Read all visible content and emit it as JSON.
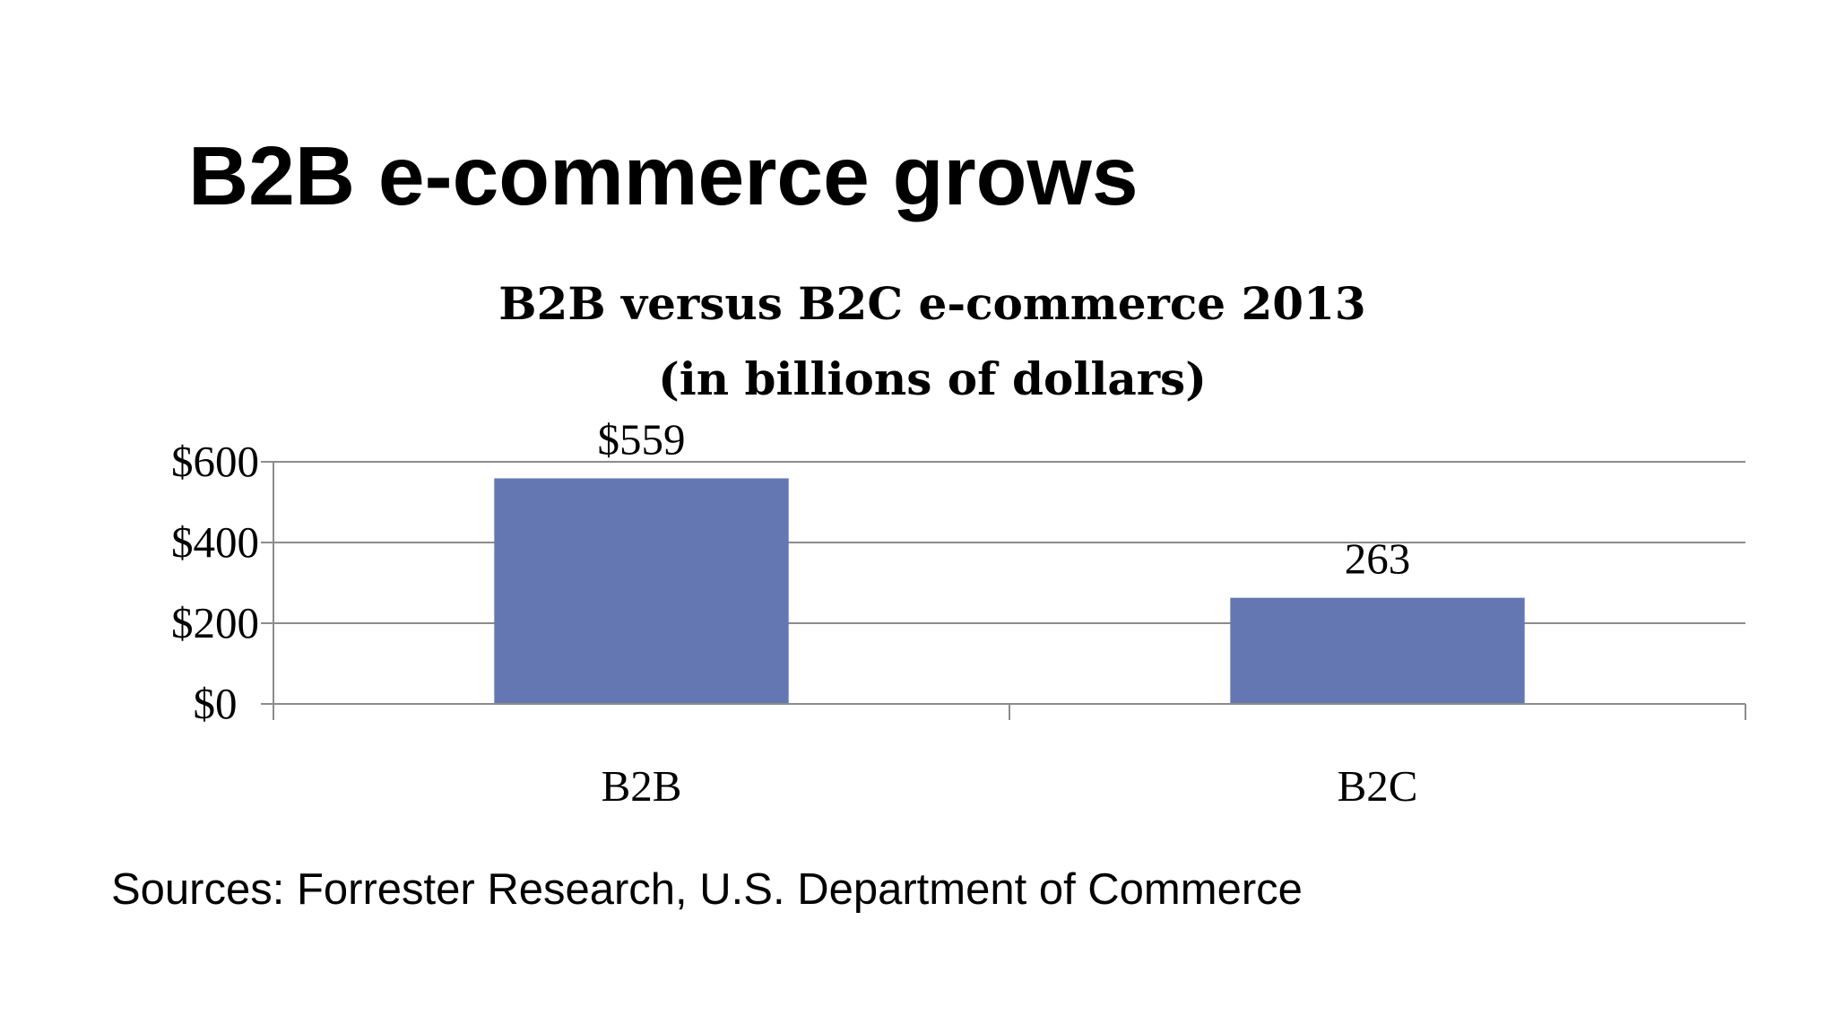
{
  "slide": {
    "title": "B2B e-commerce grows",
    "source": "Sources: Forrester Research, U.S. Department of Commerce"
  },
  "chart_data": {
    "type": "bar",
    "title_lines": [
      "B2B versus B2C e-commerce 2013",
      "(in billions of dollars)"
    ],
    "categories": [
      "B2B",
      "B2C"
    ],
    "values": [
      559,
      263
    ],
    "data_labels": [
      "$559",
      "263"
    ],
    "yticks": [
      0,
      200,
      400,
      600
    ],
    "ytick_labels": [
      "$0",
      "$200",
      "$400",
      "$600"
    ],
    "ylim": [
      0,
      600
    ],
    "xlabel": "",
    "ylabel": "",
    "grid": true,
    "legend": "none",
    "bar_color": "#6577B3",
    "grid_color": "#8C8C8C",
    "axis_color": "#8C8C8C"
  }
}
